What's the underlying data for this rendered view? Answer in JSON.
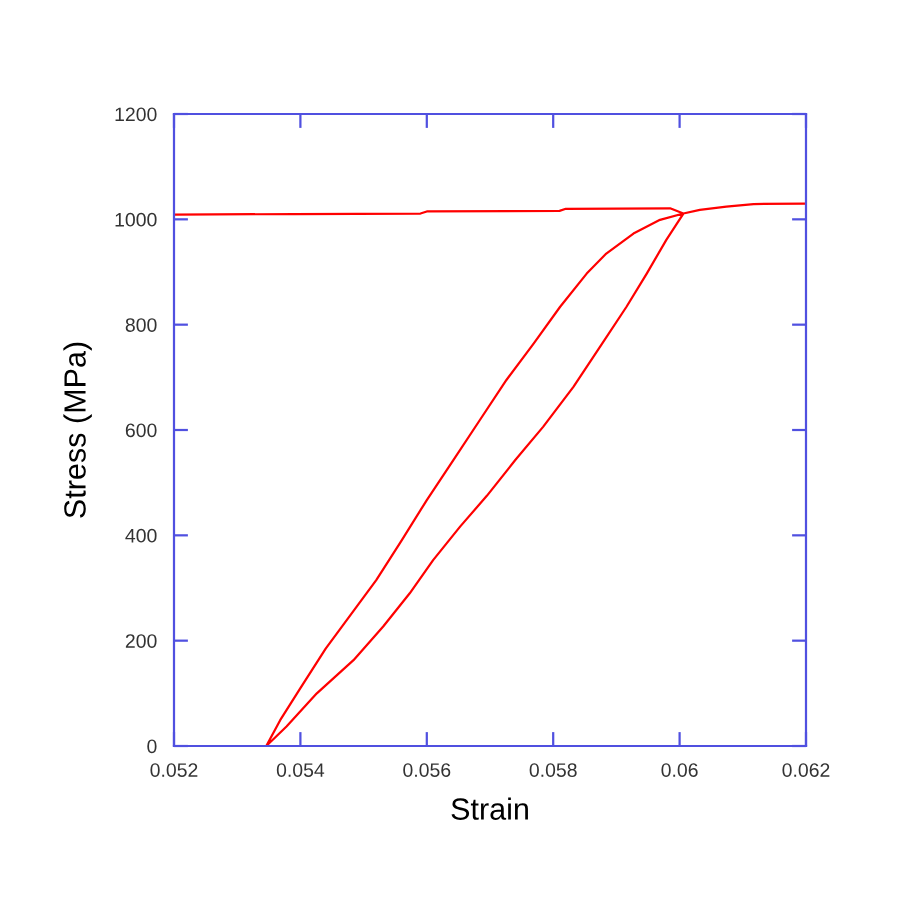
{
  "chart_data": {
    "type": "line",
    "xlabel": "Strain",
    "ylabel": "Stress (MPa)",
    "x": [
      0.052,
      0.0539,
      0.0559,
      0.056,
      0.0581,
      0.0582,
      0.05985,
      0.06006,
      0.05979,
      0.05948,
      0.05916,
      0.05874,
      0.05832,
      0.05784,
      0.0574,
      0.05695,
      0.05653,
      0.0561,
      0.05573,
      0.05531,
      0.05484,
      0.05426,
      0.05378,
      0.05346,
      0.05368,
      0.054,
      0.0544,
      0.0548,
      0.0552,
      0.0556,
      0.056,
      0.05642,
      0.05684,
      0.05726,
      0.05769,
      0.05811,
      0.05853,
      0.05884,
      0.05927,
      0.05969,
      0.06006,
      0.06032,
      0.06074,
      0.06117,
      0.062
    ],
    "values": [
      1009,
      1010,
      1011,
      1015,
      1016,
      1020,
      1021,
      1011,
      961,
      897,
      834,
      758,
      682,
      606,
      543,
      475,
      417,
      353,
      290,
      227,
      163,
      100,
      37,
      0,
      49,
      110,
      185,
      250,
      315,
      390,
      467,
      543,
      619,
      695,
      764,
      834,
      897,
      935,
      973,
      999,
      1011,
      1018,
      1024,
      1029,
      1030
    ],
    "color": "#ff0000",
    "xlim": [
      0.052,
      0.062
    ],
    "ylim": [
      0,
      1200
    ],
    "xticks": [
      0.052,
      0.054,
      0.056,
      0.058,
      0.06,
      0.062
    ],
    "yticks": [
      0,
      200,
      400,
      600,
      800,
      1000,
      1200
    ]
  }
}
